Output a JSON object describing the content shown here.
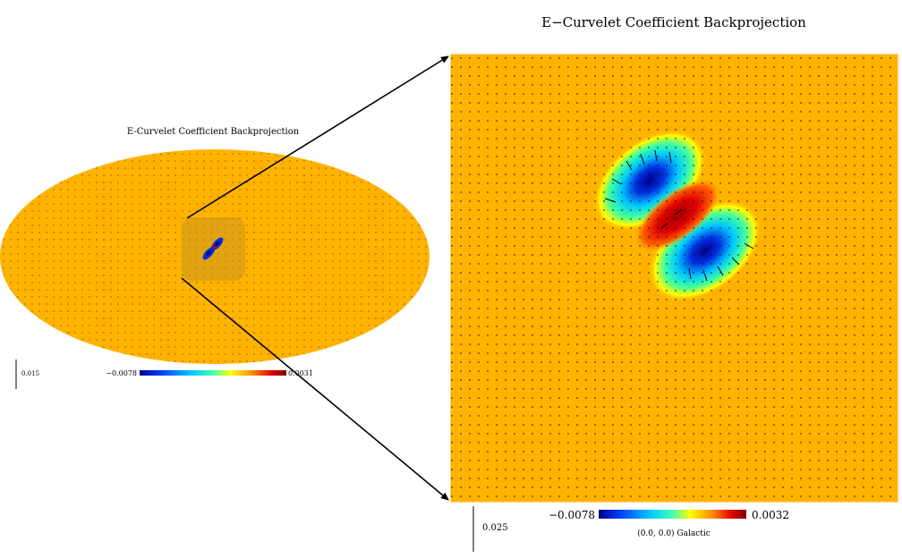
{
  "fullsky": {
    "title": "E-Curvelet Coefficient  Backprojection",
    "scale_label": "0.015",
    "colorbar_min": "−0.0078",
    "colorbar_max": "0.0031"
  },
  "zoom": {
    "title": "E−Curvelet Coefficient  Backprojection",
    "scale_label": "0.025",
    "colorbar_min": "−0.0078",
    "colorbar_max": "0.0032",
    "center_label": "(0.0, 0.0) Galactic"
  },
  "colors": {
    "background_field": "#FFB300",
    "colormap": [
      "#00008B",
      "#0040FF",
      "#00C8FF",
      "#40FFB0",
      "#FFFF00",
      "#FF8000",
      "#E00000",
      "#800000"
    ],
    "highlight_box": "#C8961E"
  }
}
